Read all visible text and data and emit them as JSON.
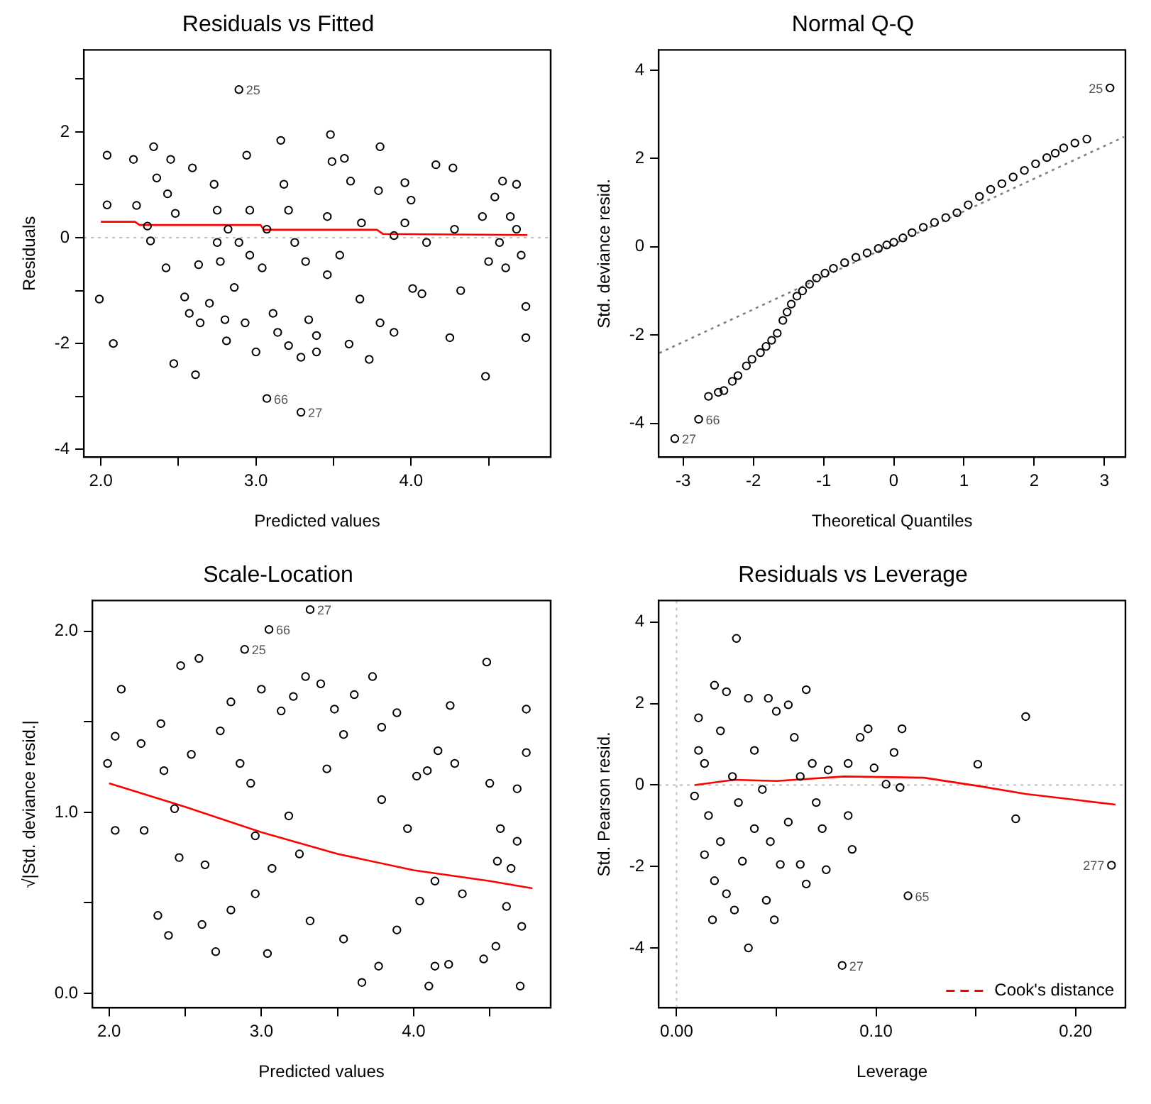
{
  "chart_data": [
    {
      "type": "scatter",
      "title": "Residuals vs Fitted",
      "xlabel": "Predicted values",
      "ylabel": "Residuals",
      "xlim": [
        1.89,
        4.9
      ],
      "ylim": [
        -4.15,
        3.55
      ],
      "xticks": [
        {
          "value": 2,
          "label": "2.0"
        },
        {
          "value": 2.5,
          "label": null
        },
        {
          "value": 3,
          "label": "3.0"
        },
        {
          "value": 3.5,
          "label": null
        },
        {
          "value": 4,
          "label": "4.0"
        },
        {
          "value": 4.5,
          "label": null
        }
      ],
      "yticks": [
        -4,
        {
          "value": -3,
          "label": null
        },
        -2,
        {
          "value": -1,
          "label": null
        },
        0,
        {
          "value": 1,
          "label": null
        },
        2,
        {
          "value": 3,
          "label": null
        }
      ],
      "ref_lines": [
        {
          "axis": "y",
          "value": 0,
          "label": null,
          "color": "#bebebe",
          "line_style": "dotted"
        }
      ],
      "annotations": [
        {
          "text": "25",
          "x": 2.89,
          "y": 2.8
        },
        {
          "text": "66",
          "x": 3.07,
          "y": -3.04
        },
        {
          "text": "27",
          "x": 3.29,
          "y": -3.3
        }
      ],
      "series": [
        {
          "marker": "circle",
          "color": "#000000",
          "x": [
            2.89,
            2.04,
            2.04,
            1.99,
            2.08,
            2.21,
            2.23,
            2.34,
            2.36,
            2.3,
            2.32,
            2.45,
            2.43,
            2.48,
            2.42,
            2.47,
            2.54,
            2.57,
            2.61,
            2.59,
            2.63,
            2.64,
            2.7,
            2.73,
            2.75,
            2.77,
            2.8,
            2.81,
            2.86,
            2.93,
            2.94,
            2.96,
            3.0,
            3.07,
            3.11,
            3.16,
            3.14,
            3.21,
            3.29,
            3.29,
            3.34,
            3.39,
            3.39,
            3.48,
            3.49,
            3.57,
            3.61,
            3.6,
            3.67,
            3.73,
            3.8,
            3.79,
            3.8,
            3.89,
            3.96,
            4.0,
            4.01,
            4.07,
            4.16,
            4.27,
            4.25,
            4.32,
            4.48,
            4.59,
            4.68,
            4.74,
            4.74,
            3.07,
            3.21,
            3.25,
            3.18,
            3.32,
            3.46,
            3.54,
            3.68,
            3.96,
            4.1,
            4.28,
            4.46,
            4.54,
            4.57,
            4.61,
            4.64,
            4.68,
            4.71,
            4.5,
            2.89,
            2.82,
            2.96,
            2.75,
            3.04,
            3.46,
            3.89
          ],
          "values": [
            2.8,
            1.56,
            0.62,
            -1.16,
            -2.0,
            1.48,
            0.61,
            1.72,
            1.13,
            0.22,
            -0.06,
            1.48,
            0.83,
            0.46,
            -0.57,
            -2.38,
            -1.12,
            -1.43,
            -2.59,
            1.32,
            -0.51,
            -1.61,
            -1.24,
            1.01,
            0.52,
            -0.45,
            -1.55,
            -1.95,
            -0.94,
            -1.61,
            1.56,
            -0.33,
            -2.16,
            -3.04,
            -1.43,
            1.84,
            -1.79,
            -2.04,
            -3.3,
            -2.26,
            -1.55,
            -1.85,
            -2.16,
            1.95,
            1.44,
            1.5,
            1.07,
            -2.01,
            -1.16,
            -2.3,
            1.72,
            0.89,
            -1.61,
            -1.79,
            1.04,
            0.71,
            -0.96,
            -1.06,
            1.38,
            1.32,
            -1.89,
            -1.0,
            -2.62,
            1.07,
            1.01,
            -1.3,
            -1.89,
            0.16,
            0.52,
            -0.09,
            1.01,
            -0.45,
            0.4,
            -0.33,
            0.28,
            0.28,
            -0.09,
            0.16,
            0.4,
            0.77,
            -0.09,
            -0.57,
            0.4,
            0.16,
            -0.33,
            -0.45,
            -0.09,
            0.16,
            0.52,
            -0.09,
            -0.57,
            -0.7,
            0.04
          ]
        },
        {
          "type": "line",
          "marker": "none",
          "color": "#ff0000",
          "line_style": "solid",
          "x": [
            2.0,
            2.22,
            2.25,
            3.03,
            3.05,
            3.78,
            3.82,
            4.75
          ],
          "values": [
            0.3,
            0.3,
            0.24,
            0.24,
            0.15,
            0.15,
            0.07,
            0.05
          ]
        }
      ]
    },
    {
      "type": "scatter",
      "title": "Normal Q-Q",
      "xlabel": "Theoretical Quantiles",
      "ylabel": "Std. deviance resid.",
      "xlim": [
        -3.35,
        3.3
      ],
      "ylim": [
        -4.77,
        4.46
      ],
      "xticks": [
        -3,
        -2,
        -1,
        0,
        1,
        2,
        3
      ],
      "yticks": [
        -4,
        -2,
        0,
        2,
        4
      ],
      "annotations": [
        {
          "text": "25",
          "x": 3.08,
          "y": 3.6
        },
        {
          "text": "66",
          "x": -2.78,
          "y": -3.91
        },
        {
          "text": "27",
          "x": -3.12,
          "y": -4.35
        }
      ],
      "series": [
        {
          "marker": "circle",
          "color": "#000000",
          "x": [
            -3.12,
            -2.78,
            -2.64,
            -2.5,
            -2.42,
            -2.3,
            -2.22,
            -2.1,
            -2.02,
            -1.9,
            -1.82,
            -1.74,
            -1.66,
            -1.58,
            -1.52,
            -1.46,
            -1.38,
            -1.3,
            -1.2,
            -1.1,
            -0.98,
            -0.86,
            -0.7,
            -0.54,
            -0.38,
            -0.22,
            -0.1,
            0,
            0.13,
            0.26,
            0.42,
            0.58,
            0.74,
            0.9,
            1.06,
            1.22,
            1.38,
            1.54,
            1.7,
            1.86,
            2.02,
            2.18,
            2.3,
            2.42,
            2.58,
            2.75,
            3.08
          ],
          "values": [
            -4.35,
            -3.91,
            -3.39,
            -3.3,
            -3.26,
            -3.05,
            -2.92,
            -2.7,
            -2.55,
            -2.4,
            -2.26,
            -2.12,
            -1.96,
            -1.67,
            -1.48,
            -1.3,
            -1.12,
            -1.0,
            -0.85,
            -0.71,
            -0.6,
            -0.49,
            -0.36,
            -0.24,
            -0.14,
            -0.04,
            0.04,
            0.1,
            0.2,
            0.32,
            0.44,
            0.55,
            0.66,
            0.77,
            0.95,
            1.14,
            1.3,
            1.43,
            1.58,
            1.73,
            1.88,
            2.02,
            2.12,
            2.24,
            2.35,
            2.44,
            3.6
          ]
        },
        {
          "type": "line",
          "marker": "none",
          "color": "#808080",
          "line_style": "dotted",
          "x": [
            -3.34,
            3.28
          ],
          "values": [
            -2.41,
            2.49
          ]
        }
      ]
    },
    {
      "type": "scatter",
      "title": "Scale-Location",
      "xlabel": "Predicted values",
      "ylabel": "√|Std. deviance resid.|",
      "xlim": [
        1.89,
        4.9
      ],
      "ylim": [
        -0.08,
        2.17
      ],
      "xticks": [
        {
          "value": 2,
          "label": "2.0"
        },
        {
          "value": 2.5,
          "label": null
        },
        {
          "value": 3,
          "label": "3.0"
        },
        {
          "value": 3.5,
          "label": null
        },
        {
          "value": 4,
          "label": "4.0"
        },
        {
          "value": 4.5,
          "label": null
        }
      ],
      "yticks": [
        {
          "value": 0,
          "label": "0.0"
        },
        {
          "value": 0.5,
          "label": null
        },
        {
          "value": 1,
          "label": "1.0"
        },
        {
          "value": 1.5,
          "label": null
        },
        {
          "value": 2,
          "label": "2.0"
        }
      ],
      "annotations": [
        {
          "text": "25",
          "x": 2.89,
          "y": 1.9
        },
        {
          "text": "66",
          "x": 3.05,
          "y": 2.01
        },
        {
          "text": "27",
          "x": 3.32,
          "y": 2.12
        }
      ],
      "series": [
        {
          "marker": "circle",
          "color": "#000000",
          "x": [
            2.89,
            3.05,
            3.32,
            1.99,
            2.04,
            2.08,
            2.04,
            2.21,
            2.23,
            2.34,
            2.36,
            2.43,
            2.46,
            2.32,
            2.39,
            2.47,
            2.54,
            2.59,
            2.61,
            2.63,
            2.7,
            2.73,
            2.8,
            2.8,
            2.86,
            3.0,
            3.04,
            2.93,
            2.96,
            2.96,
            3.07,
            3.13,
            3.21,
            3.29,
            3.39,
            3.48,
            3.54,
            3.43,
            3.25,
            3.18,
            3.32,
            3.54,
            3.61,
            3.73,
            3.79,
            3.89,
            3.79,
            3.66,
            3.77,
            3.89,
            3.96,
            4.02,
            4.09,
            4.16,
            4.24,
            4.27,
            4.1,
            4.14,
            4.23,
            4.04,
            4.14,
            4.32,
            4.48,
            4.5,
            4.57,
            4.61,
            4.54,
            4.68,
            4.7,
            4.74,
            4.74,
            4.64,
            4.71,
            4.55,
            4.46,
            4.68
          ],
          "values": [
            1.9,
            2.01,
            2.12,
            1.27,
            1.42,
            1.68,
            0.9,
            1.38,
            0.9,
            1.49,
            1.23,
            1.02,
            0.75,
            0.43,
            0.32,
            1.81,
            1.32,
            1.85,
            0.38,
            0.71,
            0.23,
            1.45,
            1.61,
            0.46,
            1.27,
            1.68,
            0.22,
            1.16,
            0.87,
            0.55,
            0.69,
            1.56,
            1.64,
            1.75,
            1.71,
            1.57,
            1.43,
            1.24,
            0.77,
            0.98,
            0.4,
            0.3,
            1.65,
            1.75,
            1.47,
            1.55,
            1.07,
            0.06,
            0.15,
            0.35,
            0.91,
            1.2,
            1.23,
            1.34,
            1.59,
            1.27,
            0.04,
            0.15,
            0.16,
            0.51,
            0.62,
            0.55,
            1.83,
            1.16,
            0.91,
            0.48,
            0.26,
            1.13,
            0.04,
            1.57,
            1.33,
            0.69,
            0.37,
            0.73,
            0.19,
            0.84
          ]
        },
        {
          "type": "line",
          "marker": "none",
          "color": "#ff0000",
          "line_style": "solid",
          "x": [
            2.0,
            2.5,
            3.0,
            3.5,
            4.0,
            4.5,
            4.78
          ],
          "values": [
            1.16,
            1.03,
            0.89,
            0.77,
            0.68,
            0.62,
            0.58
          ]
        }
      ]
    },
    {
      "type": "scatter",
      "title": "Residuals vs Leverage",
      "xlabel": "Leverage",
      "ylabel": "Std. Pearson resid.",
      "legend": "bottom right",
      "xlim": [
        -0.009,
        0.225
      ],
      "ylim": [
        -5.47,
        4.53
      ],
      "xticks": [
        {
          "value": 0,
          "label": "0.00"
        },
        {
          "value": 0.05,
          "label": null
        },
        {
          "value": 0.1,
          "label": "0.10"
        },
        {
          "value": 0.15,
          "label": null
        },
        {
          "value": 0.2,
          "label": "0.20"
        }
      ],
      "yticks": [
        -4,
        -2,
        0,
        2,
        4
      ],
      "ref_lines": [
        {
          "axis": "y",
          "value": 0,
          "label": null,
          "color": "#bebebe",
          "line_style": "dotted"
        },
        {
          "axis": "x",
          "value": 0,
          "label": null,
          "color": "#bebebe",
          "line_style": "dotted"
        }
      ],
      "annotations": [
        {
          "text": "277",
          "x": 0.218,
          "y": -1.97
        },
        {
          "text": "65",
          "x": 0.116,
          "y": -2.72
        },
        {
          "text": "27",
          "x": 0.083,
          "y": -4.43
        }
      ],
      "series": [
        {
          "marker": "circle",
          "color": "#000000",
          "x": [
            0.03,
            0.065,
            0.175,
            0.151,
            0.17,
            0.218,
            0.116,
            0.113,
            0.109,
            0.096,
            0.092,
            0.086,
            0.099,
            0.105,
            0.112,
            0.086,
            0.088,
            0.075,
            0.065,
            0.062,
            0.052,
            0.049,
            0.045,
            0.036,
            0.083,
            0.011,
            0.014,
            0.009,
            0.016,
            0.019,
            0.025,
            0.022,
            0.028,
            0.031,
            0.022,
            0.019,
            0.018,
            0.025,
            0.029,
            0.033,
            0.036,
            0.039,
            0.043,
            0.046,
            0.05,
            0.056,
            0.059,
            0.062,
            0.068,
            0.07,
            0.076,
            0.073,
            0.056,
            0.047,
            0.039,
            0.014,
            0.011
          ],
          "values": [
            3.6,
            2.34,
            1.68,
            0.51,
            -0.83,
            -1.97,
            -2.72,
            1.38,
            0.8,
            1.38,
            1.17,
            0.53,
            0.42,
            0.02,
            -0.06,
            -0.75,
            -1.58,
            -2.08,
            -2.43,
            -1.95,
            -1.95,
            -3.31,
            -2.83,
            -4.0,
            -4.43,
            1.65,
            0.53,
            -0.27,
            -0.75,
            2.45,
            2.29,
            1.33,
            0.21,
            -0.43,
            -1.39,
            -2.35,
            -3.31,
            -2.67,
            -3.07,
            -1.87,
            2.13,
            0.85,
            -0.11,
            2.13,
            1.81,
            1.97,
            1.17,
            0.21,
            0.53,
            -0.43,
            0.37,
            -1.07,
            -0.91,
            -1.39,
            -1.07,
            -1.71,
            0.85
          ]
        },
        {
          "type": "line",
          "marker": "none",
          "color": "#ff0000",
          "line_style": "solid",
          "x": [
            0.009,
            0.029,
            0.05,
            0.084,
            0.124,
            0.152,
            0.175,
            0.22
          ],
          "values": [
            0,
            0.13,
            0.1,
            0.21,
            0.18,
            -0.03,
            -0.22,
            -0.48
          ]
        },
        {
          "type": "line",
          "name": "Cook's distance",
          "color": "#ff0000",
          "line_style": "dashed",
          "marker": "none"
        }
      ]
    }
  ]
}
